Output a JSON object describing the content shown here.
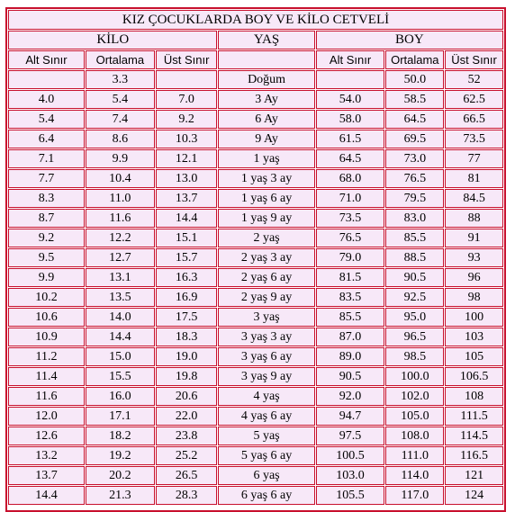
{
  "title": "KIZ ÇOCUKLARDA BOY VE KİLO CETVELİ",
  "groups": {
    "kilo": "KİLO",
    "yas": "YAŞ",
    "boy": "BOY"
  },
  "subheaders": {
    "alt": "Alt Sınır",
    "ortalama": "Ortalama",
    "ust": "Üst Sınır"
  },
  "birth": {
    "kilo_ort": "3.3",
    "yas": "Doğum",
    "boy_ort": "50.0",
    "boy_ust": "52"
  },
  "rows": [
    [
      "4.0",
      "5.4",
      "7.0",
      "3 Ay",
      "54.0",
      "58.5",
      "62.5"
    ],
    [
      "5.4",
      "7.4",
      "9.2",
      "6 Ay",
      "58.0",
      "64.5",
      "66.5"
    ],
    [
      "6.4",
      "8.6",
      "10.3",
      "9 Ay",
      "61.5",
      "69.5",
      "73.5"
    ],
    [
      "7.1",
      "9.9",
      "12.1",
      "1 yaş",
      "64.5",
      "73.0",
      "77"
    ],
    [
      "7.7",
      "10.4",
      "13.0",
      "1 yaş 3 ay",
      "68.0",
      "76.5",
      "81"
    ],
    [
      "8.3",
      "11.0",
      "13.7",
      "1 yaş 6 ay",
      "71.0",
      "79.5",
      "84.5"
    ],
    [
      "8.7",
      "11.6",
      "14.4",
      "1 yaş 9 ay",
      "73.5",
      "83.0",
      "88"
    ],
    [
      "9.2",
      "12.2",
      "15.1",
      "2 yaş",
      "76.5",
      "85.5",
      "91"
    ],
    [
      "9.5",
      "12.7",
      "15.7",
      "2 yaş 3 ay",
      "79.0",
      "88.5",
      "93"
    ],
    [
      "9.9",
      "13.1",
      "16.3",
      "2 yaş 6 ay",
      "81.5",
      "90.5",
      "96"
    ],
    [
      "10.2",
      "13.5",
      "16.9",
      "2 yaş 9 ay",
      "83.5",
      "92.5",
      "98"
    ],
    [
      "10.6",
      "14.0",
      "17.5",
      "3 yaş",
      "85.5",
      "95.0",
      "100"
    ],
    [
      "10.9",
      "14.4",
      "18.3",
      "3 yaş 3 ay",
      "87.0",
      "96.5",
      "103"
    ],
    [
      "11.2",
      "15.0",
      "19.0",
      "3 yaş 6 ay",
      "89.0",
      "98.5",
      "105"
    ],
    [
      "11.4",
      "15.5",
      "19.8",
      "3 yaş 9 ay",
      "90.5",
      "100.0",
      "106.5"
    ],
    [
      "11.6",
      "16.0",
      "20.6",
      "4 yaş",
      "92.0",
      "102.0",
      "108"
    ],
    [
      "12.0",
      "17.1",
      "22.0",
      "4 yaş 6 ay",
      "94.7",
      "105.0",
      "111.5"
    ],
    [
      "12.6",
      "18.2",
      "23.8",
      "5 yaş",
      "97.5",
      "108.0",
      "114.5"
    ],
    [
      "13.2",
      "19.2",
      "25.2",
      "5 yaş 6 ay",
      "100.5",
      "111.0",
      "116.5"
    ],
    [
      "13.7",
      "20.2",
      "26.5",
      "6 yaş",
      "103.0",
      "114.0",
      "121"
    ],
    [
      "14.4",
      "21.3",
      "28.3",
      "6 yaş 6 ay",
      "105.5",
      "117.0",
      "124"
    ]
  ]
}
